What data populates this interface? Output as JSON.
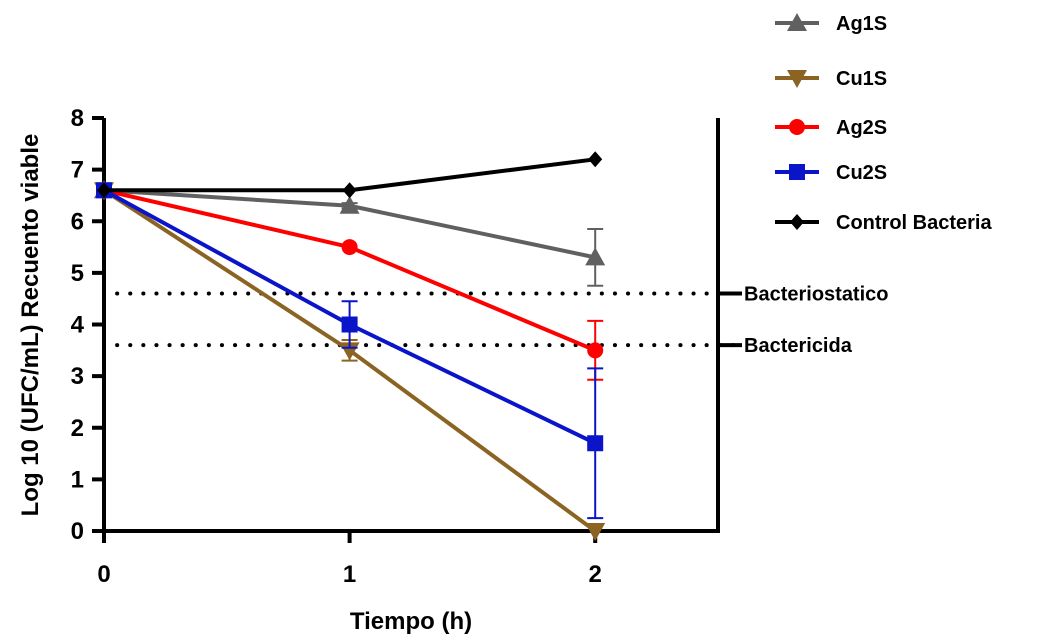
{
  "chart_data": {
    "type": "line",
    "xlabel": "Tiempo (h)",
    "ylabel": "Log 10 (UFC/mL) Recuento viable",
    "x": [
      0,
      1,
      2
    ],
    "xlim": [
      0,
      2.5
    ],
    "ylim": [
      0,
      8
    ],
    "xticks": [
      "0",
      "1",
      "2"
    ],
    "yticks": [
      "0",
      "1",
      "2",
      "3",
      "4",
      "5",
      "6",
      "7",
      "8"
    ],
    "grid": false,
    "legend_position": "top-right",
    "series": [
      {
        "name": "Ag1S",
        "color": "#606060",
        "marker": "triangle-up",
        "values": [
          6.6,
          6.3,
          5.3
        ],
        "errors": [
          0,
          0.05,
          0.55
        ]
      },
      {
        "name": "Cu1S",
        "color": "#8B6323",
        "marker": "triangle-down",
        "values": [
          6.6,
          3.5,
          0.0
        ],
        "errors": [
          0,
          0.2,
          0
        ]
      },
      {
        "name": "Ag2S",
        "color": "#FF0000",
        "marker": "circle",
        "values": [
          6.6,
          5.5,
          3.5
        ],
        "errors": [
          0,
          0,
          0.57
        ]
      },
      {
        "name": "Cu2S",
        "color": "#0A14C8",
        "marker": "square",
        "values": [
          6.6,
          4.0,
          1.7
        ],
        "errors": [
          0,
          0.45,
          1.45
        ]
      },
      {
        "name": "Control Bacteria",
        "color": "#000000",
        "marker": "diamond",
        "values": [
          6.6,
          6.6,
          7.2
        ],
        "errors": [
          0,
          0,
          0
        ]
      }
    ],
    "reference_lines": [
      {
        "label": "Bacteriostatico",
        "y": 4.6
      },
      {
        "label": "Bactericida",
        "y": 3.6
      }
    ]
  }
}
